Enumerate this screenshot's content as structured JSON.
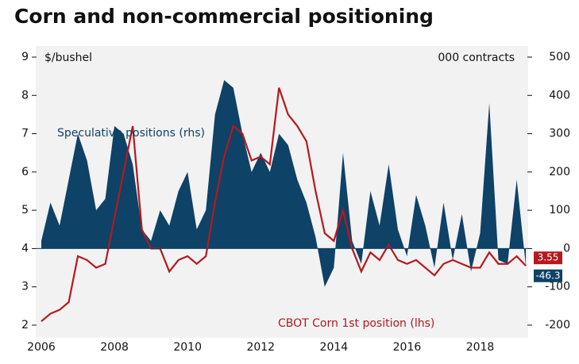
{
  "chart_data": {
    "type": "line-area",
    "title": "Corn and non-commercial positioning",
    "y_label": "$/bushel",
    "y2_label": "000 contracts",
    "x": [
      2006,
      2006.25,
      2006.5,
      2006.75,
      2007,
      2007.25,
      2007.5,
      2007.75,
      2008,
      2008.25,
      2008.5,
      2008.75,
      2009,
      2009.25,
      2009.5,
      2009.75,
      2010,
      2010.25,
      2010.5,
      2010.75,
      2011,
      2011.25,
      2011.5,
      2011.75,
      2012,
      2012.25,
      2012.5,
      2012.75,
      2013,
      2013.25,
      2013.5,
      2013.75,
      2014,
      2014.25,
      2014.5,
      2014.75,
      2015,
      2015.25,
      2015.5,
      2015.75,
      2016,
      2016.25,
      2016.5,
      2016.75,
      2017,
      2017.25,
      2017.5,
      2017.75,
      2018,
      2018.25,
      2018.5,
      2018.75,
      2019,
      2019.25
    ],
    "series": [
      {
        "name": "Speculative positions (rhs)",
        "color": "#0e4266",
        "axis": "y2",
        "style": "area",
        "values": [
          20,
          120,
          60,
          180,
          300,
          230,
          100,
          130,
          320,
          300,
          220,
          50,
          20,
          100,
          60,
          150,
          200,
          50,
          100,
          350,
          440,
          420,
          300,
          200,
          250,
          200,
          300,
          270,
          180,
          120,
          30,
          -100,
          -50,
          250,
          20,
          -40,
          150,
          60,
          220,
          50,
          -20,
          140,
          60,
          -50,
          120,
          -30,
          90,
          -60,
          40,
          380,
          -30,
          -40,
          180,
          -46.3
        ]
      },
      {
        "name": "CBOT Corn 1st position (lhs)",
        "color": "#b5191f",
        "axis": "y",
        "style": "line",
        "values": [
          2.1,
          2.3,
          2.4,
          2.6,
          3.8,
          3.7,
          3.5,
          3.6,
          4.8,
          6.0,
          7.2,
          4.5,
          4.0,
          4.0,
          3.4,
          3.7,
          3.8,
          3.6,
          3.8,
          5.2,
          6.4,
          7.2,
          7.0,
          6.3,
          6.4,
          6.2,
          8.2,
          7.5,
          7.2,
          6.8,
          5.5,
          4.4,
          4.2,
          5.0,
          4.0,
          3.4,
          3.9,
          3.7,
          4.1,
          3.7,
          3.6,
          3.7,
          3.5,
          3.3,
          3.6,
          3.7,
          3.6,
          3.5,
          3.5,
          3.9,
          3.6,
          3.6,
          3.8,
          3.55
        ]
      }
    ],
    "xlim": [
      2006,
      2019.4
    ],
    "xticks": [
      2006,
      2008,
      2010,
      2012,
      2014,
      2016,
      2018
    ],
    "ylim": [
      2,
      9
    ],
    "yticks": [
      2,
      3,
      4,
      5,
      6,
      7,
      8,
      9
    ],
    "y2lim": [
      -200,
      500
    ],
    "y2ticks": [
      -200,
      -100,
      0,
      100,
      200,
      300,
      400,
      500
    ]
  }
}
